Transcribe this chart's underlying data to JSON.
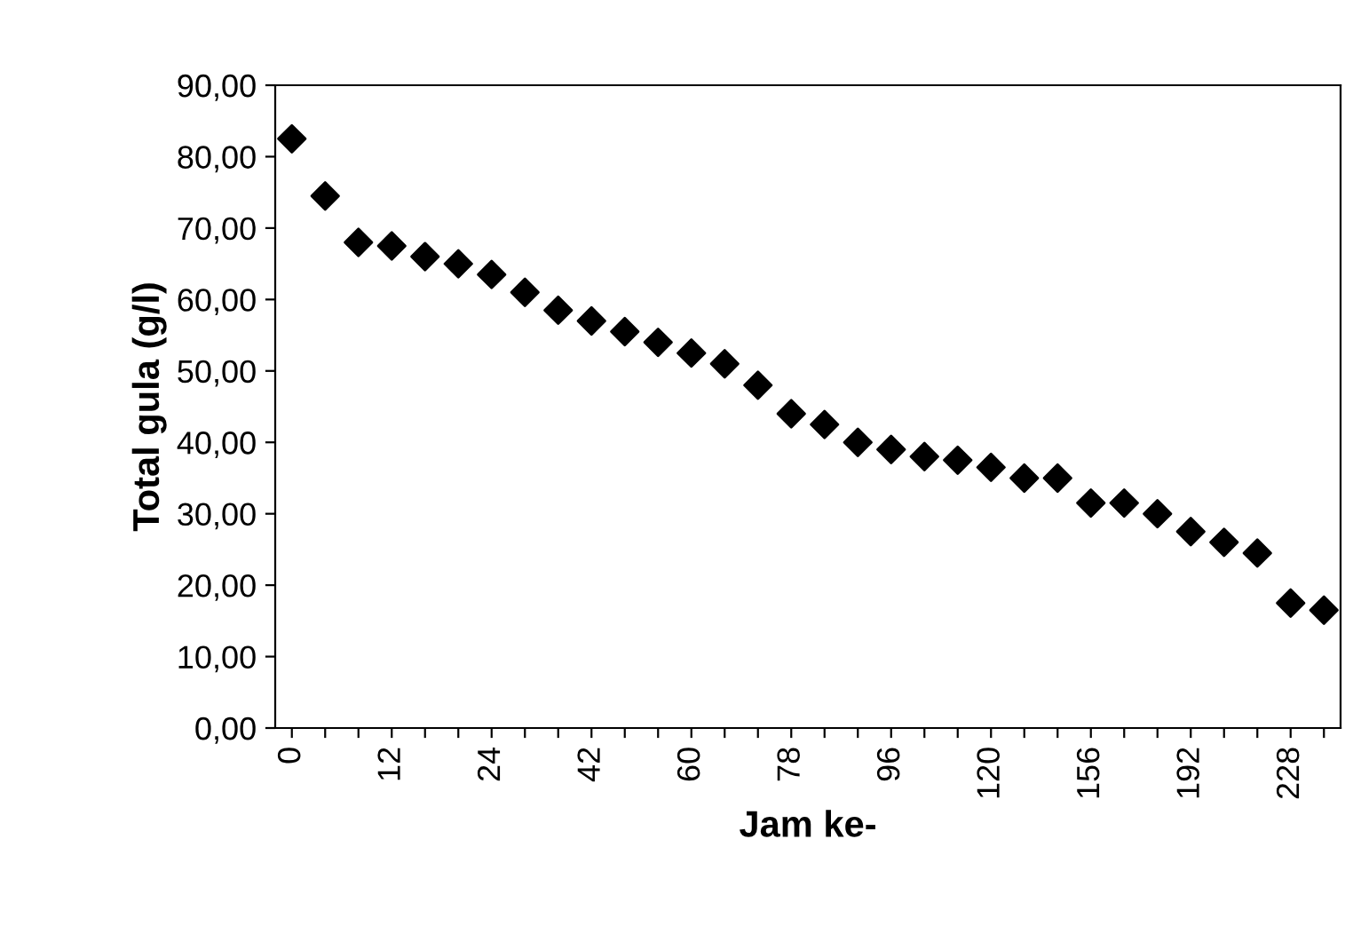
{
  "chart_data": {
    "type": "scatter",
    "xlabel": "Jam ke-",
    "ylabel": "Total gula (g/l)",
    "categories": [
      "0",
      null,
      null,
      "12",
      null,
      null,
      "24",
      null,
      null,
      "42",
      null,
      null,
      "60",
      null,
      null,
      "78",
      null,
      null,
      "96",
      null,
      null,
      "120",
      null,
      null,
      "156",
      null,
      null,
      "192",
      null,
      null,
      "228",
      null
    ],
    "series": [
      {
        "color": "#000000",
        "values": [
          82.5,
          74.5,
          68,
          67.5,
          66,
          65,
          63.5,
          61,
          58.5,
          57,
          55.5,
          54,
          52.5,
          51,
          48,
          44,
          42.5,
          40,
          39,
          38,
          37.5,
          36.5,
          35,
          35,
          31.5,
          31.5,
          30,
          27.5,
          26,
          24.5,
          17.5,
          16.5
        ]
      }
    ],
    "ylim": [
      0,
      90
    ],
    "yticks": [
      {
        "value": 0,
        "label": "0,00"
      },
      {
        "value": 10,
        "label": "10,00"
      },
      {
        "value": 20,
        "label": "20,00"
      },
      {
        "value": 30,
        "label": "30,00"
      },
      {
        "value": 40,
        "label": "40,00"
      },
      {
        "value": 50,
        "label": "50,00"
      },
      {
        "value": 60,
        "label": "60,00"
      },
      {
        "value": 70,
        "label": "70,00"
      },
      {
        "value": 80,
        "label": "80,00"
      },
      {
        "value": 90,
        "label": "90,00"
      }
    ],
    "marker": "diamond",
    "grid": false,
    "legend": false
  }
}
